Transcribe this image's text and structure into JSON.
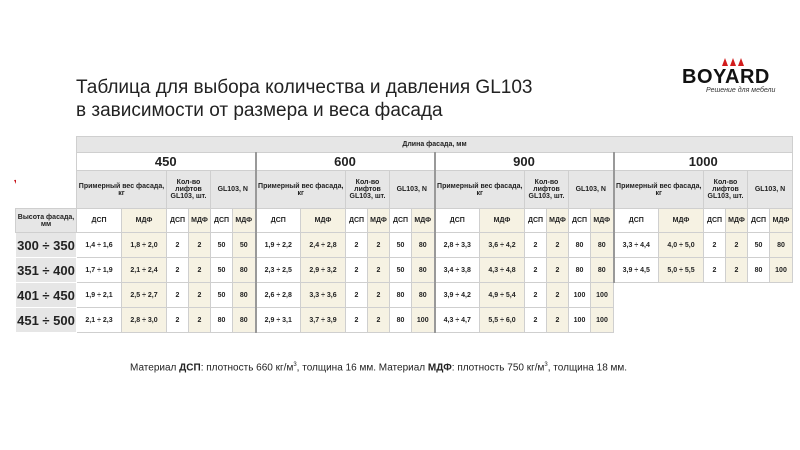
{
  "title_line1": "Таблица для выбора количества и давления GL103",
  "title_line2": "в зависимости от размера и веса фасада",
  "logo": {
    "brand": "BOYARD",
    "slogan": "Решение для мебели"
  },
  "table": {
    "length_header": "Длина фасада, мм",
    "height_header": "Высота фасада, мм",
    "weight_header": "Примерный вес фасада, кг",
    "count_header": "Кол-во лифтов GL103, шт.",
    "force_header": "GL103, N",
    "dsp": "ДСП",
    "mdf": "МДФ",
    "lengths": [
      "450",
      "600",
      "900",
      "1000"
    ],
    "rows": [
      {
        "height": "300 ÷ 350",
        "groups": [
          [
            "1,4 ÷ 1,6",
            "1,8 ÷ 2,0",
            "2",
            "2",
            "50",
            "50"
          ],
          [
            "1,9 ÷ 2,2",
            "2,4 ÷ 2,8",
            "2",
            "2",
            "50",
            "80"
          ],
          [
            "2,8 ÷ 3,3",
            "3,6 ÷ 4,2",
            "2",
            "2",
            "80",
            "80"
          ],
          [
            "3,3 ÷ 4,4",
            "4,0 ÷ 5,0",
            "2",
            "2",
            "50",
            "80"
          ]
        ]
      },
      {
        "height": "351 ÷ 400",
        "groups": [
          [
            "1,7 ÷ 1,9",
            "2,1 ÷ 2,4",
            "2",
            "2",
            "50",
            "80"
          ],
          [
            "2,3 ÷ 2,5",
            "2,9 ÷ 3,2",
            "2",
            "2",
            "50",
            "80"
          ],
          [
            "3,4 ÷ 3,8",
            "4,3 ÷ 4,8",
            "2",
            "2",
            "80",
            "80"
          ],
          [
            "3,9 ÷ 4,5",
            "5,0 ÷ 5,5",
            "2",
            "2",
            "80",
            "100"
          ]
        ]
      },
      {
        "height": "401 ÷ 450",
        "groups": [
          [
            "1,9 ÷ 2,1",
            "2,5 ÷ 2,7",
            "2",
            "2",
            "50",
            "80"
          ],
          [
            "2,6 ÷ 2,8",
            "3,3 ÷ 3,6",
            "2",
            "2",
            "80",
            "80"
          ],
          [
            "3,9 ÷ 4,2",
            "4,9 ÷ 5,4",
            "2",
            "2",
            "100",
            "100"
          ]
        ]
      },
      {
        "height": "451 ÷ 500",
        "groups": [
          [
            "2,1 ÷ 2,3",
            "2,8 ÷ 3,0",
            "2",
            "2",
            "80",
            "80"
          ],
          [
            "2,9 ÷ 3,1",
            "3,7 ÷ 3,9",
            "2",
            "2",
            "80",
            "100"
          ],
          [
            "4,3 ÷ 4,7",
            "5,5 ÷ 6,0",
            "2",
            "2",
            "100",
            "100"
          ]
        ]
      }
    ]
  },
  "note": {
    "p1": "Материал ",
    "dsp": "ДСП",
    "p2": ": плотность 660 кг/м",
    "sup": "3",
    "p3": ", толщина 16 мм. Материал ",
    "mdf": "МДФ",
    "p4": ": плотность 750 кг/м",
    "p5": ", толщина 18 мм."
  },
  "colors": {
    "mdf_bg": "#f6f2e3",
    "header_bg": "#e6e6e6",
    "accent_red": "#c8161d"
  }
}
